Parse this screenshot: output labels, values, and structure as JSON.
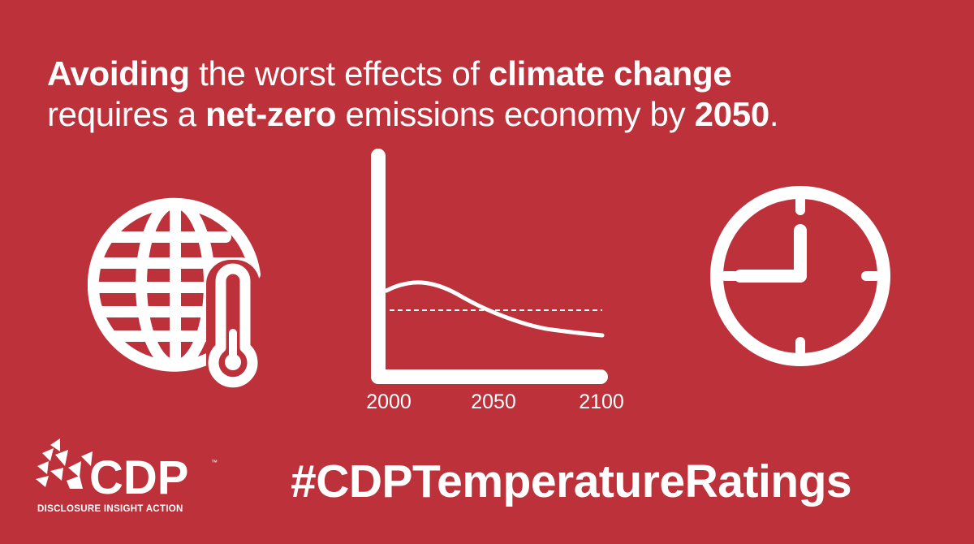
{
  "headline": {
    "line1": [
      {
        "text": "Avoiding",
        "bold": true
      },
      {
        "text": " the worst effects of ",
        "bold": false
      },
      {
        "text": "climate change",
        "bold": true
      }
    ],
    "line2": [
      {
        "text": "requires a ",
        "bold": false
      },
      {
        "text": "net-zero",
        "bold": true
      },
      {
        "text": " emissions economy by ",
        "bold": false
      },
      {
        "text": "2050",
        "bold": true
      },
      {
        "text": ".",
        "bold": false
      }
    ]
  },
  "icons": {
    "left": "globe-thermometer-icon",
    "right": "clock-icon"
  },
  "chart_data": {
    "type": "line",
    "x_ticks": [
      "2000",
      "2050",
      "2100"
    ],
    "grid": false,
    "legend": "none"
  },
  "logo": {
    "brand": "CDP",
    "tagline": "DISCLOSURE INSIGHT ACTION",
    "trademark": "™"
  },
  "hashtag": "#CDPTemperatureRatings",
  "colors": {
    "background": "#bd313a",
    "foreground": "#ffffff"
  }
}
